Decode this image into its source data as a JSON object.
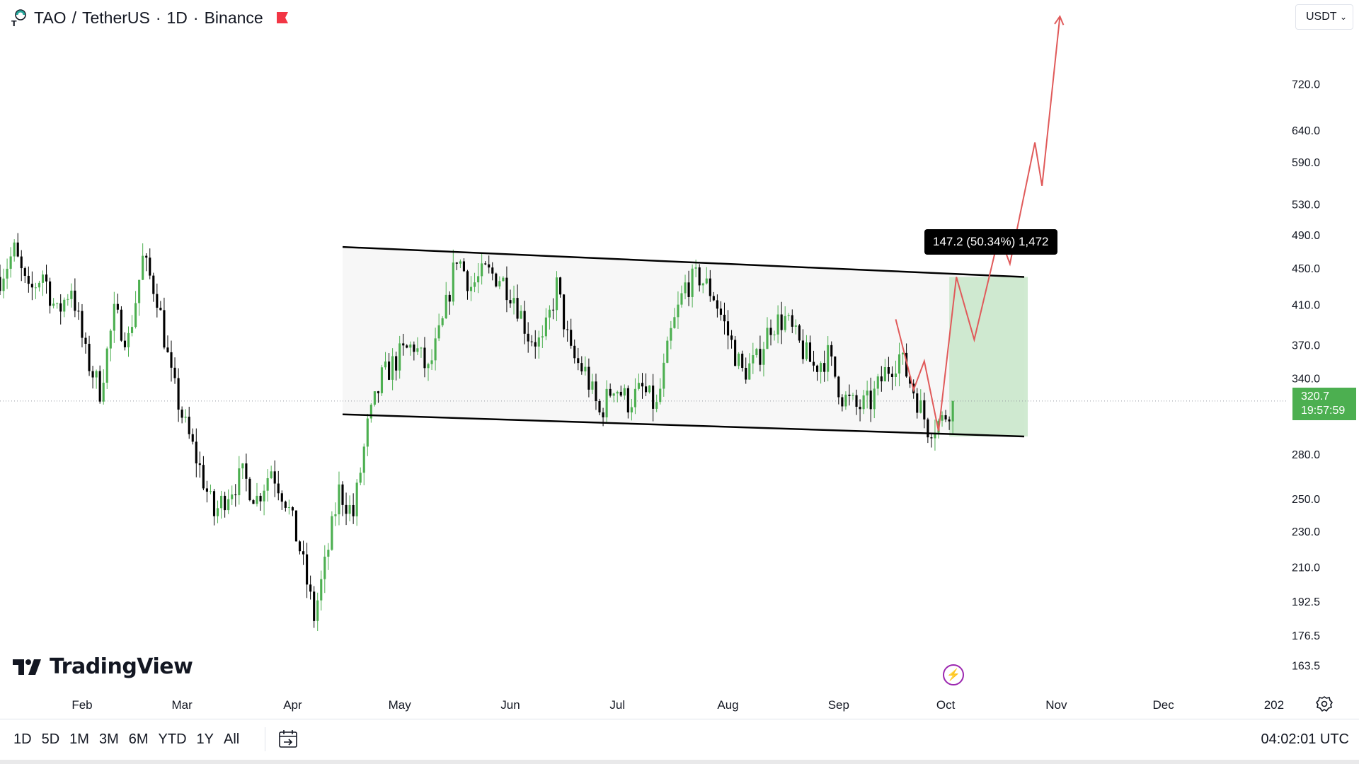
{
  "header": {
    "symbol": "TAO",
    "quote": "TetherUS",
    "interval": "1D",
    "exchange": "Binance",
    "flag_color": "#f23645"
  },
  "currency_selector": {
    "value": "USDT"
  },
  "brand": {
    "name": "TradingView"
  },
  "time_ranges": [
    "1D",
    "5D",
    "1M",
    "3M",
    "6M",
    "YTD",
    "1Y",
    "All"
  ],
  "clock": "04:02:01 UTC",
  "current_price": {
    "value": "320.7",
    "countdown": "19:57:59"
  },
  "measure_label": "147.2 (50.34%) 1,472",
  "colors": {
    "up": "#4caf50",
    "down": "#000000",
    "projection": "#e05a5a",
    "channel_fill": "#f7f7f7",
    "target_fill": "#c8e6c9",
    "price_tag": "#4caf50"
  },
  "chart_data": {
    "type": "candlestick",
    "title": "TAO / TetherUS · 1D · Binance",
    "y_scale": "log",
    "ylim": [
      155,
      860
    ],
    "y_ticks": [
      720.0,
      640.0,
      590.0,
      530.0,
      490.0,
      450.0,
      410.0,
      370.0,
      340.0,
      280.0,
      250.0,
      230.0,
      210.0,
      192.5,
      176.5,
      163.5
    ],
    "y_tick_labels": [
      "720.0",
      "640.0",
      "590.0",
      "530.0",
      "490.0",
      "450.0",
      "410.0",
      "370.0",
      "340.0",
      "280.0",
      "250.0",
      "230.0",
      "210.0",
      "192.5",
      "176.5",
      "163.5"
    ],
    "x_ticks": [
      {
        "label": "Feb",
        "date": "2025-02-01"
      },
      {
        "label": "Mar",
        "date": "2025-03-01"
      },
      {
        "label": "Apr",
        "date": "2025-04-01"
      },
      {
        "label": "May",
        "date": "2025-05-01"
      },
      {
        "label": "Jun",
        "date": "2025-06-01"
      },
      {
        "label": "Jul",
        "date": "2025-07-01"
      },
      {
        "label": "Aug",
        "date": "2025-08-01"
      },
      {
        "label": "Sep",
        "date": "2025-09-01"
      },
      {
        "label": "Oct",
        "date": "2025-10-01"
      },
      {
        "label": "Nov",
        "date": "2025-11-01"
      },
      {
        "label": "Dec",
        "date": "2025-12-01"
      },
      {
        "label": "202",
        "date": "2026-01-01"
      }
    ],
    "x_range": [
      "2025-01-09",
      "2026-01-03"
    ],
    "last_price": 320.7,
    "close_path": [
      [
        "2025-01-09",
        440
      ],
      [
        "2025-01-13",
        470
      ],
      [
        "2025-01-17",
        420
      ],
      [
        "2025-01-21",
        445
      ],
      [
        "2025-01-25",
        400
      ],
      [
        "2025-01-29",
        430
      ],
      [
        "2025-02-02",
        360
      ],
      [
        "2025-02-06",
        330
      ],
      [
        "2025-02-10",
        400
      ],
      [
        "2025-02-14",
        375
      ],
      [
        "2025-02-18",
        460
      ],
      [
        "2025-02-22",
        420
      ],
      [
        "2025-02-26",
        340
      ],
      [
        "2025-03-02",
        300
      ],
      [
        "2025-03-06",
        270
      ],
      [
        "2025-03-10",
        240
      ],
      [
        "2025-03-14",
        255
      ],
      [
        "2025-03-18",
        265
      ],
      [
        "2025-03-22",
        250
      ],
      [
        "2025-03-26",
        270
      ],
      [
        "2025-03-30",
        250
      ],
      [
        "2025-04-03",
        220
      ],
      [
        "2025-04-07",
        185
      ],
      [
        "2025-04-10",
        210
      ],
      [
        "2025-04-14",
        255
      ],
      [
        "2025-04-18",
        240
      ],
      [
        "2025-04-22",
        300
      ],
      [
        "2025-04-26",
        340
      ],
      [
        "2025-05-01",
        360
      ],
      [
        "2025-05-05",
        370
      ],
      [
        "2025-05-09",
        345
      ],
      [
        "2025-05-13",
        390
      ],
      [
        "2025-05-17",
        465
      ],
      [
        "2025-05-21",
        430
      ],
      [
        "2025-05-25",
        445
      ],
      [
        "2025-05-29",
        440
      ],
      [
        "2025-06-02",
        420
      ],
      [
        "2025-06-06",
        380
      ],
      [
        "2025-06-10",
        370
      ],
      [
        "2025-06-14",
        430
      ],
      [
        "2025-06-18",
        360
      ],
      [
        "2025-06-22",
        345
      ],
      [
        "2025-06-26",
        310
      ],
      [
        "2025-06-30",
        335
      ],
      [
        "2025-07-04",
        320
      ],
      [
        "2025-07-08",
        330
      ],
      [
        "2025-07-12",
        315
      ],
      [
        "2025-07-16",
        380
      ],
      [
        "2025-07-20",
        430
      ],
      [
        "2025-07-24",
        440
      ],
      [
        "2025-07-28",
        420
      ],
      [
        "2025-08-01",
        380
      ],
      [
        "2025-08-05",
        345
      ],
      [
        "2025-08-09",
        355
      ],
      [
        "2025-08-13",
        390
      ],
      [
        "2025-08-17",
        395
      ],
      [
        "2025-08-21",
        370
      ],
      [
        "2025-08-25",
        350
      ],
      [
        "2025-08-29",
        360
      ],
      [
        "2025-09-02",
        325
      ],
      [
        "2025-09-06",
        315
      ],
      [
        "2025-09-10",
        320
      ],
      [
        "2025-09-14",
        345
      ],
      [
        "2025-09-18",
        360
      ],
      [
        "2025-09-22",
        330
      ],
      [
        "2025-09-26",
        300
      ],
      [
        "2025-09-30",
        305
      ],
      [
        "2025-10-03",
        320.7
      ]
    ],
    "annotations": [
      {
        "type": "trendline",
        "name": "channel-top",
        "from": [
          "2025-04-15",
          475
        ],
        "to": [
          "2025-10-23",
          440
        ]
      },
      {
        "type": "trendline",
        "name": "channel-bottom",
        "from": [
          "2025-04-15",
          310
        ],
        "to": [
          "2025-10-23",
          293
        ]
      },
      {
        "type": "projection",
        "points": [
          [
            "2025-09-17",
            395
          ],
          [
            "2025-09-22",
            330
          ],
          [
            "2025-09-25",
            355
          ],
          [
            "2025-09-29",
            297
          ],
          [
            "2025-10-04",
            440
          ],
          [
            "2025-10-09",
            375
          ],
          [
            "2025-10-16",
            490
          ],
          [
            "2025-10-19",
            455
          ],
          [
            "2025-10-26",
            620
          ],
          [
            "2025-10-28",
            555
          ],
          [
            "2025-11-02",
            855
          ]
        ]
      },
      {
        "type": "range",
        "from": [
          "2025-10-02",
          293
        ],
        "to": [
          "2025-10-24",
          440
        ]
      }
    ]
  }
}
